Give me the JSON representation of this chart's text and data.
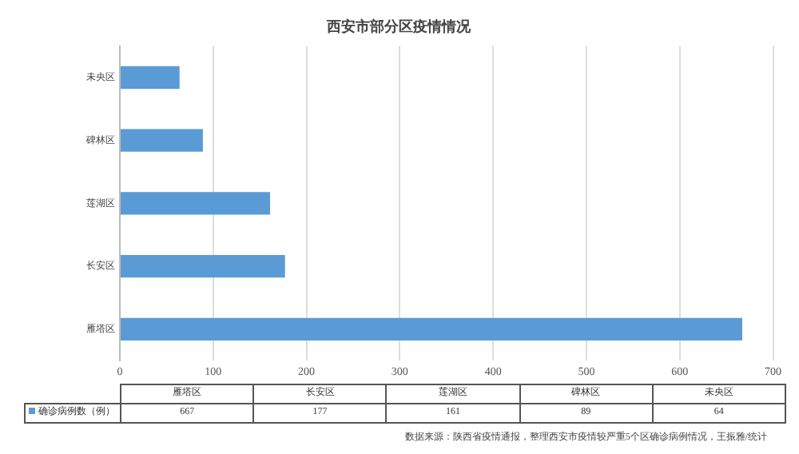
{
  "chart_data": [
    {
      "type": "bar",
      "orientation": "horizontal",
      "title": "西安市部分区疫情情况",
      "categories": [
        "未央区",
        "碑林区",
        "莲湖区",
        "长安区",
        "雁塔区"
      ],
      "series": [
        {
          "color": "#5b9bd5",
          "values": [
            64,
            89,
            161,
            177,
            667
          ]
        }
      ],
      "xlim": [
        0,
        700
      ],
      "xticks": [
        0,
        100,
        200,
        300,
        400,
        500,
        600,
        700
      ],
      "grid": "x"
    },
    {
      "type": "other",
      "categories": [
        "雁塔区",
        "长安区",
        "莲湖区",
        "碑林区",
        "未央区"
      ],
      "series": [
        {
          "name": "确诊病例数（例）",
          "color": "#5b9bd5",
          "values": [
            667,
            177,
            161,
            89,
            64
          ]
        }
      ],
      "data_labels": true,
      "annotations": [
        "数据来源：陕西省疫情通报，整理西安市疫情较严重5个区确诊病例情况，王振雅/统计"
      ]
    }
  ]
}
